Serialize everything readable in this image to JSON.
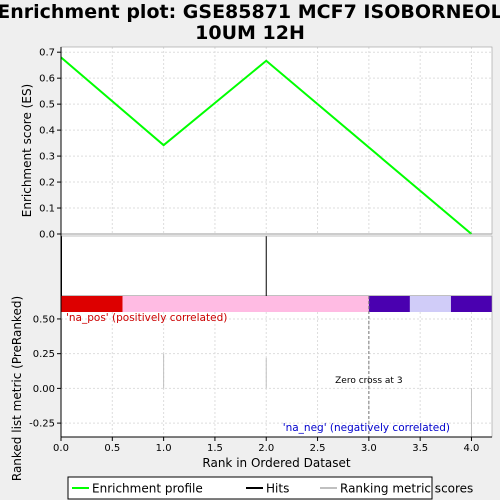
{
  "title": "Enrichment plot: GSE85871 MCF7 ISOBORNEOL 10UM 12H",
  "chart_data": {
    "type": "line",
    "title": "Enrichment plot: GSE85871 MCF7 ISOBORNEOL 10UM 12H",
    "xlabel": "Rank in Ordered Dataset",
    "xlim": [
      0,
      4.2
    ],
    "x_ticks": [
      "0.0",
      "0.5",
      "1.0",
      "1.5",
      "2.0",
      "2.5",
      "3.0",
      "3.5",
      "4.0"
    ],
    "es_panel": {
      "ylabel": "Enrichment score (ES)",
      "ylim": [
        0,
        0.72
      ],
      "y_ticks": [
        "0.0",
        "0.1",
        "0.2",
        "0.3",
        "0.4",
        "0.5",
        "0.6",
        "0.7"
      ],
      "series": [
        {
          "name": "Enrichment profile",
          "color": "#00ff00",
          "x": [
            0,
            1,
            2,
            4
          ],
          "y": [
            0.68,
            0.342,
            0.667,
            0.0
          ]
        }
      ]
    },
    "hits": {
      "x": [
        0,
        2
      ],
      "color": "#000000"
    },
    "color_bar": [
      {
        "from": 0.0,
        "to": 0.6,
        "color": "#dd0000"
      },
      {
        "from": 0.6,
        "to": 3.0,
        "color": "#ffbbe3"
      },
      {
        "from": 3.0,
        "to": 3.4,
        "color": "#4a00b0"
      },
      {
        "from": 3.4,
        "to": 3.8,
        "color": "#d0ccf8"
      },
      {
        "from": 3.8,
        "to": 4.2,
        "color": "#4a00b0"
      }
    ],
    "rank_panel": {
      "ylabel": "Ranked list metric (PreRanked)",
      "ylim": [
        -0.35,
        0.55
      ],
      "y_ticks": [
        "-0.25",
        "0.00",
        "0.25",
        "0.50"
      ],
      "metric_bars": [
        {
          "x": 0,
          "y": 0.5
        },
        {
          "x": 1,
          "y": 0.25
        },
        {
          "x": 2,
          "y": 0.22
        },
        {
          "x": 4,
          "y": -0.35
        }
      ],
      "zero_cross_x": 3,
      "zero_cross_label": "Zero cross at 3",
      "pos_label": "'na_pos' (positively correlated)",
      "neg_label": "'na_neg' (negatively correlated)",
      "pos_color": "#cc0000",
      "neg_color": "#0000cc"
    },
    "legend": {
      "items": [
        {
          "label": "Enrichment profile",
          "color": "#00ff00"
        },
        {
          "label": "Hits",
          "color": "#000000"
        },
        {
          "label": "Ranking metric scores",
          "color": "#c0c0c0"
        }
      ]
    }
  }
}
